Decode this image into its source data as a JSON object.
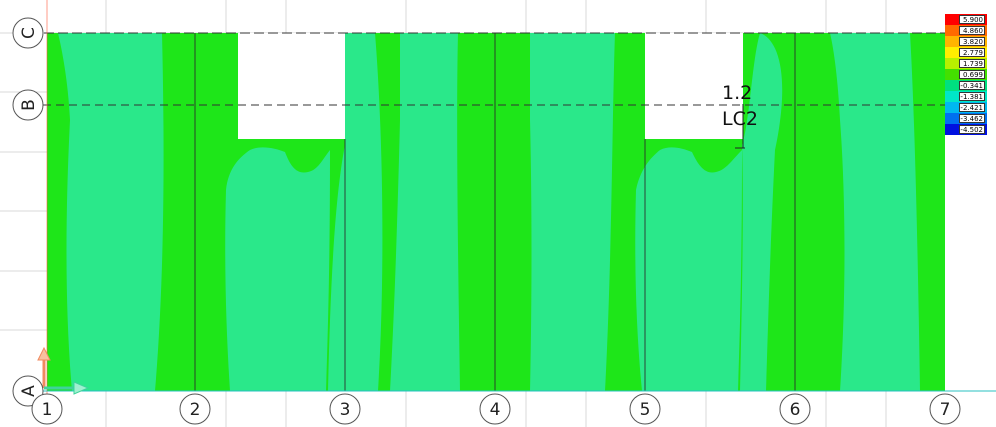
{
  "grid": {
    "columns": [
      "1",
      "2",
      "3",
      "4",
      "5",
      "6",
      "7"
    ],
    "rows": [
      "A",
      "B",
      "C"
    ]
  },
  "annotation": {
    "factor": "1.2",
    "load_case": "LC2"
  },
  "legend": {
    "values": [
      "5.900",
      "4.860",
      "3.820",
      "2.779",
      "1.739",
      "0.699",
      "-0.341",
      "-1.381",
      "-2.421",
      "-3.462",
      "-4.502"
    ],
    "colors": [
      "#ff0000",
      "#ff6a00",
      "#ffb400",
      "#ffee00",
      "#b8f000",
      "#44e000",
      "#00e080",
      "#00e6c8",
      "#00b8f0",
      "#0070f0",
      "#0010e0"
    ]
  },
  "colors": {
    "green_dark": "#1ee619",
    "green_light": "#2ae88a",
    "grid_line": "#d0d0d0",
    "axis_x": "#3fd39a",
    "axis_y": "#f08a60"
  }
}
